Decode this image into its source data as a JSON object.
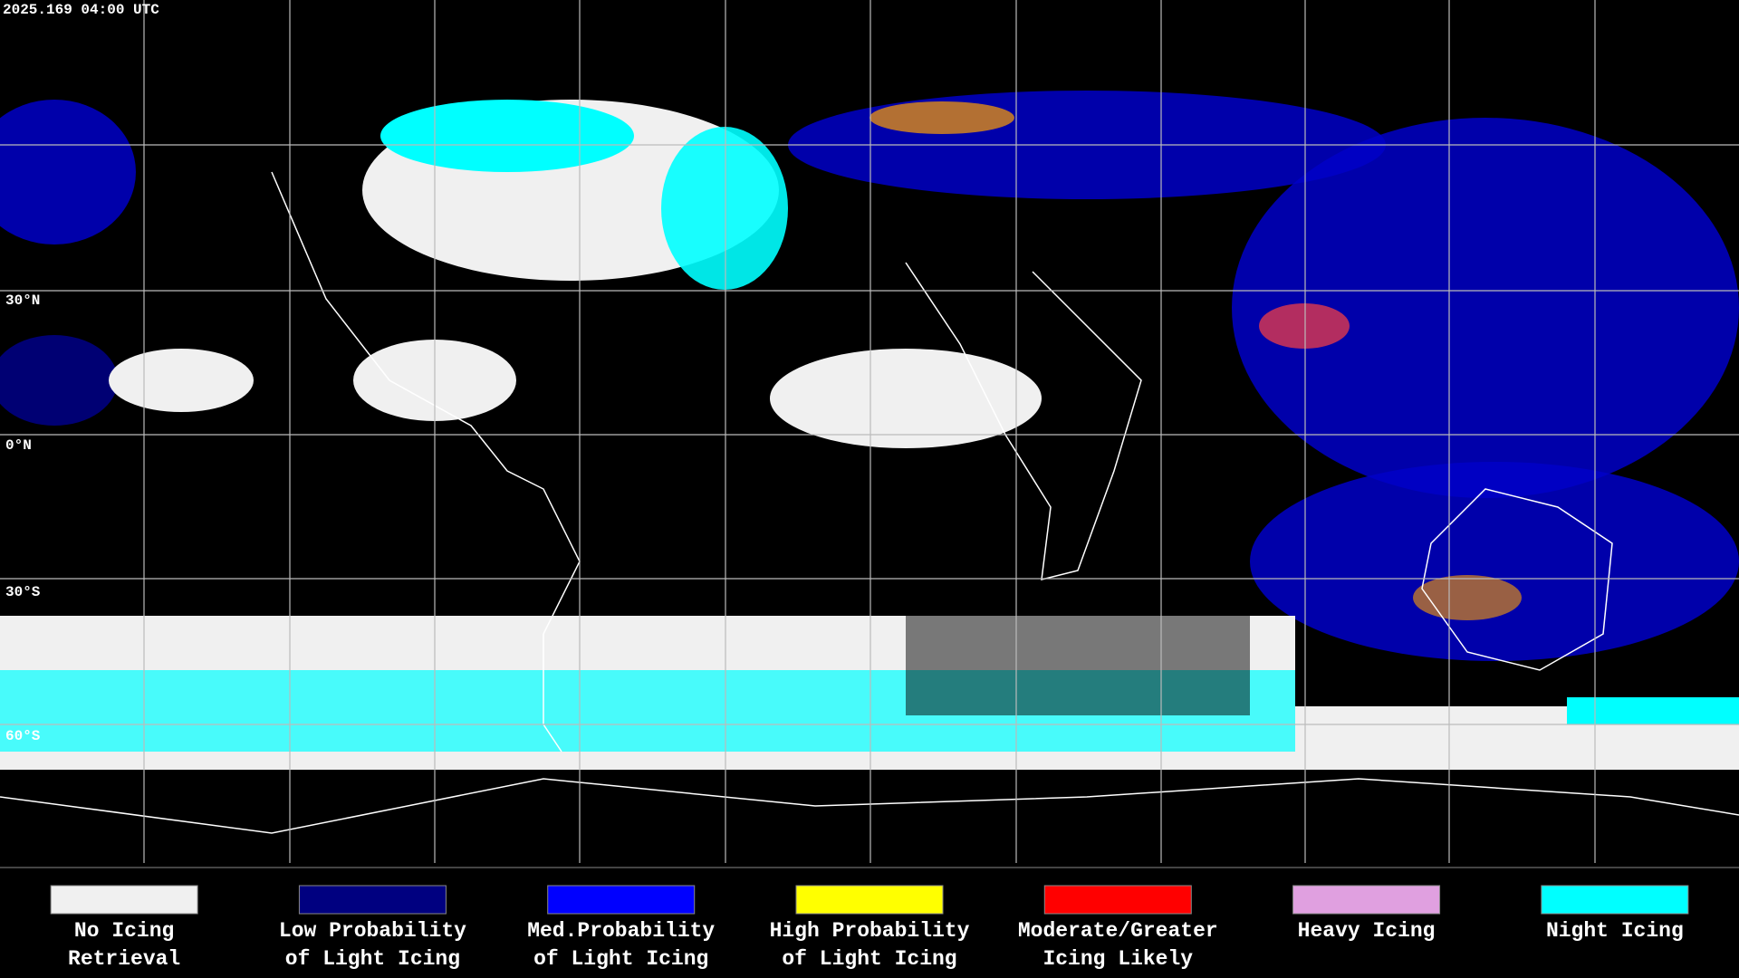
{
  "header": {
    "timestamp": "2025.169 04:00 UTC"
  },
  "latitude_labels": [
    "30°N",
    "0°N",
    "30°S",
    "60°S"
  ],
  "legend": [
    {
      "lines": [
        "No Icing",
        "Retrieval"
      ],
      "color": "#f0f0f0"
    },
    {
      "lines": [
        "Low Probability",
        "of Light Icing"
      ],
      "color": "#000080"
    },
    {
      "lines": [
        "Med.Probability",
        "of Light Icing"
      ],
      "color": "#0000ff"
    },
    {
      "lines": [
        "High Probability",
        "of Light Icing"
      ],
      "color": "#ffff00"
    },
    {
      "lines": [
        "Moderate/Greater",
        "Icing Likely"
      ],
      "color": "#ff0000"
    },
    {
      "lines": [
        "Heavy Icing"
      ],
      "color": "#e0a0e0"
    },
    {
      "lines": [
        "Night Icing"
      ],
      "color": "#00ffff"
    }
  ]
}
